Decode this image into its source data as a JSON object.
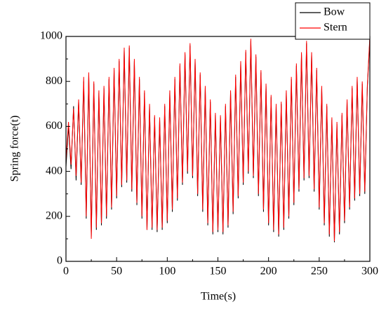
{
  "chart_data": {
    "type": "line",
    "xlabel": "Time(s)",
    "ylabel": "Spring force(t)",
    "xlim": [
      0,
      300
    ],
    "xticks": [
      0,
      50,
      100,
      150,
      200,
      250,
      300
    ],
    "ylim": [
      0,
      1000
    ],
    "yticks": [
      0,
      200,
      400,
      600,
      800,
      1000
    ],
    "legend": "top-right",
    "x": [
      0,
      2.5,
      5,
      7.5,
      10,
      12.5,
      15,
      17.5,
      20,
      22.5,
      25,
      27.5,
      30,
      32.5,
      35,
      37.5,
      40,
      42.5,
      45,
      47.5,
      50,
      52.5,
      55,
      57.5,
      60,
      62.5,
      65,
      67.5,
      70,
      72.5,
      75,
      77.5,
      80,
      82.5,
      85,
      87.5,
      90,
      92.5,
      95,
      97.5,
      100,
      102.5,
      105,
      107.5,
      110,
      112.5,
      115,
      117.5,
      120,
      122.5,
      125,
      127.5,
      130,
      132.5,
      135,
      137.5,
      140,
      142.5,
      145,
      147.5,
      150,
      152.5,
      155,
      157.5,
      160,
      162.5,
      165,
      167.5,
      170,
      172.5,
      175,
      177.5,
      180,
      182.5,
      185,
      187.5,
      190,
      192.5,
      195,
      197.5,
      200,
      202.5,
      205,
      207.5,
      210,
      212.5,
      215,
      217.5,
      220,
      222.5,
      225,
      227.5,
      230,
      232.5,
      235,
      237.5,
      240,
      242.5,
      245,
      247.5,
      250,
      252.5,
      255,
      257.5,
      260,
      262.5,
      265,
      267.5,
      270,
      272.5,
      275,
      277.5,
      280,
      282.5,
      285,
      287.5,
      290,
      292.5,
      295,
      297.5,
      300
    ],
    "series": [
      {
        "name": "Bow",
        "color": "#000000",
        "values": [
          420,
          600,
          410,
          690,
          360,
          710,
          340,
          800,
          190,
          830,
          110,
          790,
          140,
          750,
          160,
          770,
          190,
          810,
          230,
          850,
          280,
          890,
          330,
          940,
          350,
          950,
          310,
          890,
          250,
          810,
          190,
          750,
          140,
          690,
          140,
          640,
          130,
          630,
          140,
          690,
          170,
          750,
          220,
          810,
          270,
          870,
          340,
          920,
          390,
          960,
          370,
          890,
          290,
          830,
          220,
          770,
          160,
          710,
          120,
          650,
          130,
          640,
          120,
          690,
          150,
          750,
          210,
          820,
          280,
          880,
          340,
          930,
          390,
          980,
          370,
          910,
          290,
          840,
          220,
          780,
          160,
          730,
          130,
          690,
          110,
          700,
          140,
          750,
          190,
          810,
          250,
          870,
          310,
          920,
          360,
          970,
          370,
          920,
          310,
          850,
          230,
          770,
          160,
          690,
          110,
          630,
          85,
          610,
          120,
          650,
          170,
          710,
          230,
          770,
          270,
          810,
          290,
          790,
          300,
          770,
          990
        ]
      },
      {
        "name": "Stern",
        "color": "#ff0000",
        "values": [
          450,
          620,
          430,
          680,
          380,
          720,
          350,
          820,
          200,
          840,
          100,
          800,
          150,
          760,
          170,
          780,
          200,
          820,
          240,
          860,
          290,
          900,
          340,
          950,
          360,
          960,
          320,
          900,
          260,
          820,
          200,
          760,
          140,
          700,
          150,
          650,
          140,
          640,
          150,
          700,
          180,
          760,
          230,
          820,
          280,
          880,
          350,
          930,
          400,
          970,
          380,
          900,
          300,
          840,
          230,
          780,
          170,
          720,
          130,
          660,
          140,
          650,
          130,
          700,
          160,
          760,
          220,
          830,
          290,
          890,
          350,
          940,
          400,
          990,
          380,
          920,
          300,
          850,
          230,
          790,
          170,
          740,
          140,
          700,
          120,
          710,
          150,
          760,
          200,
          820,
          260,
          880,
          320,
          930,
          370,
          980,
          380,
          930,
          320,
          860,
          240,
          780,
          170,
          700,
          120,
          640,
          90,
          620,
          130,
          660,
          180,
          720,
          240,
          780,
          280,
          820,
          300,
          800,
          310,
          780,
          1000
        ]
      }
    ]
  }
}
